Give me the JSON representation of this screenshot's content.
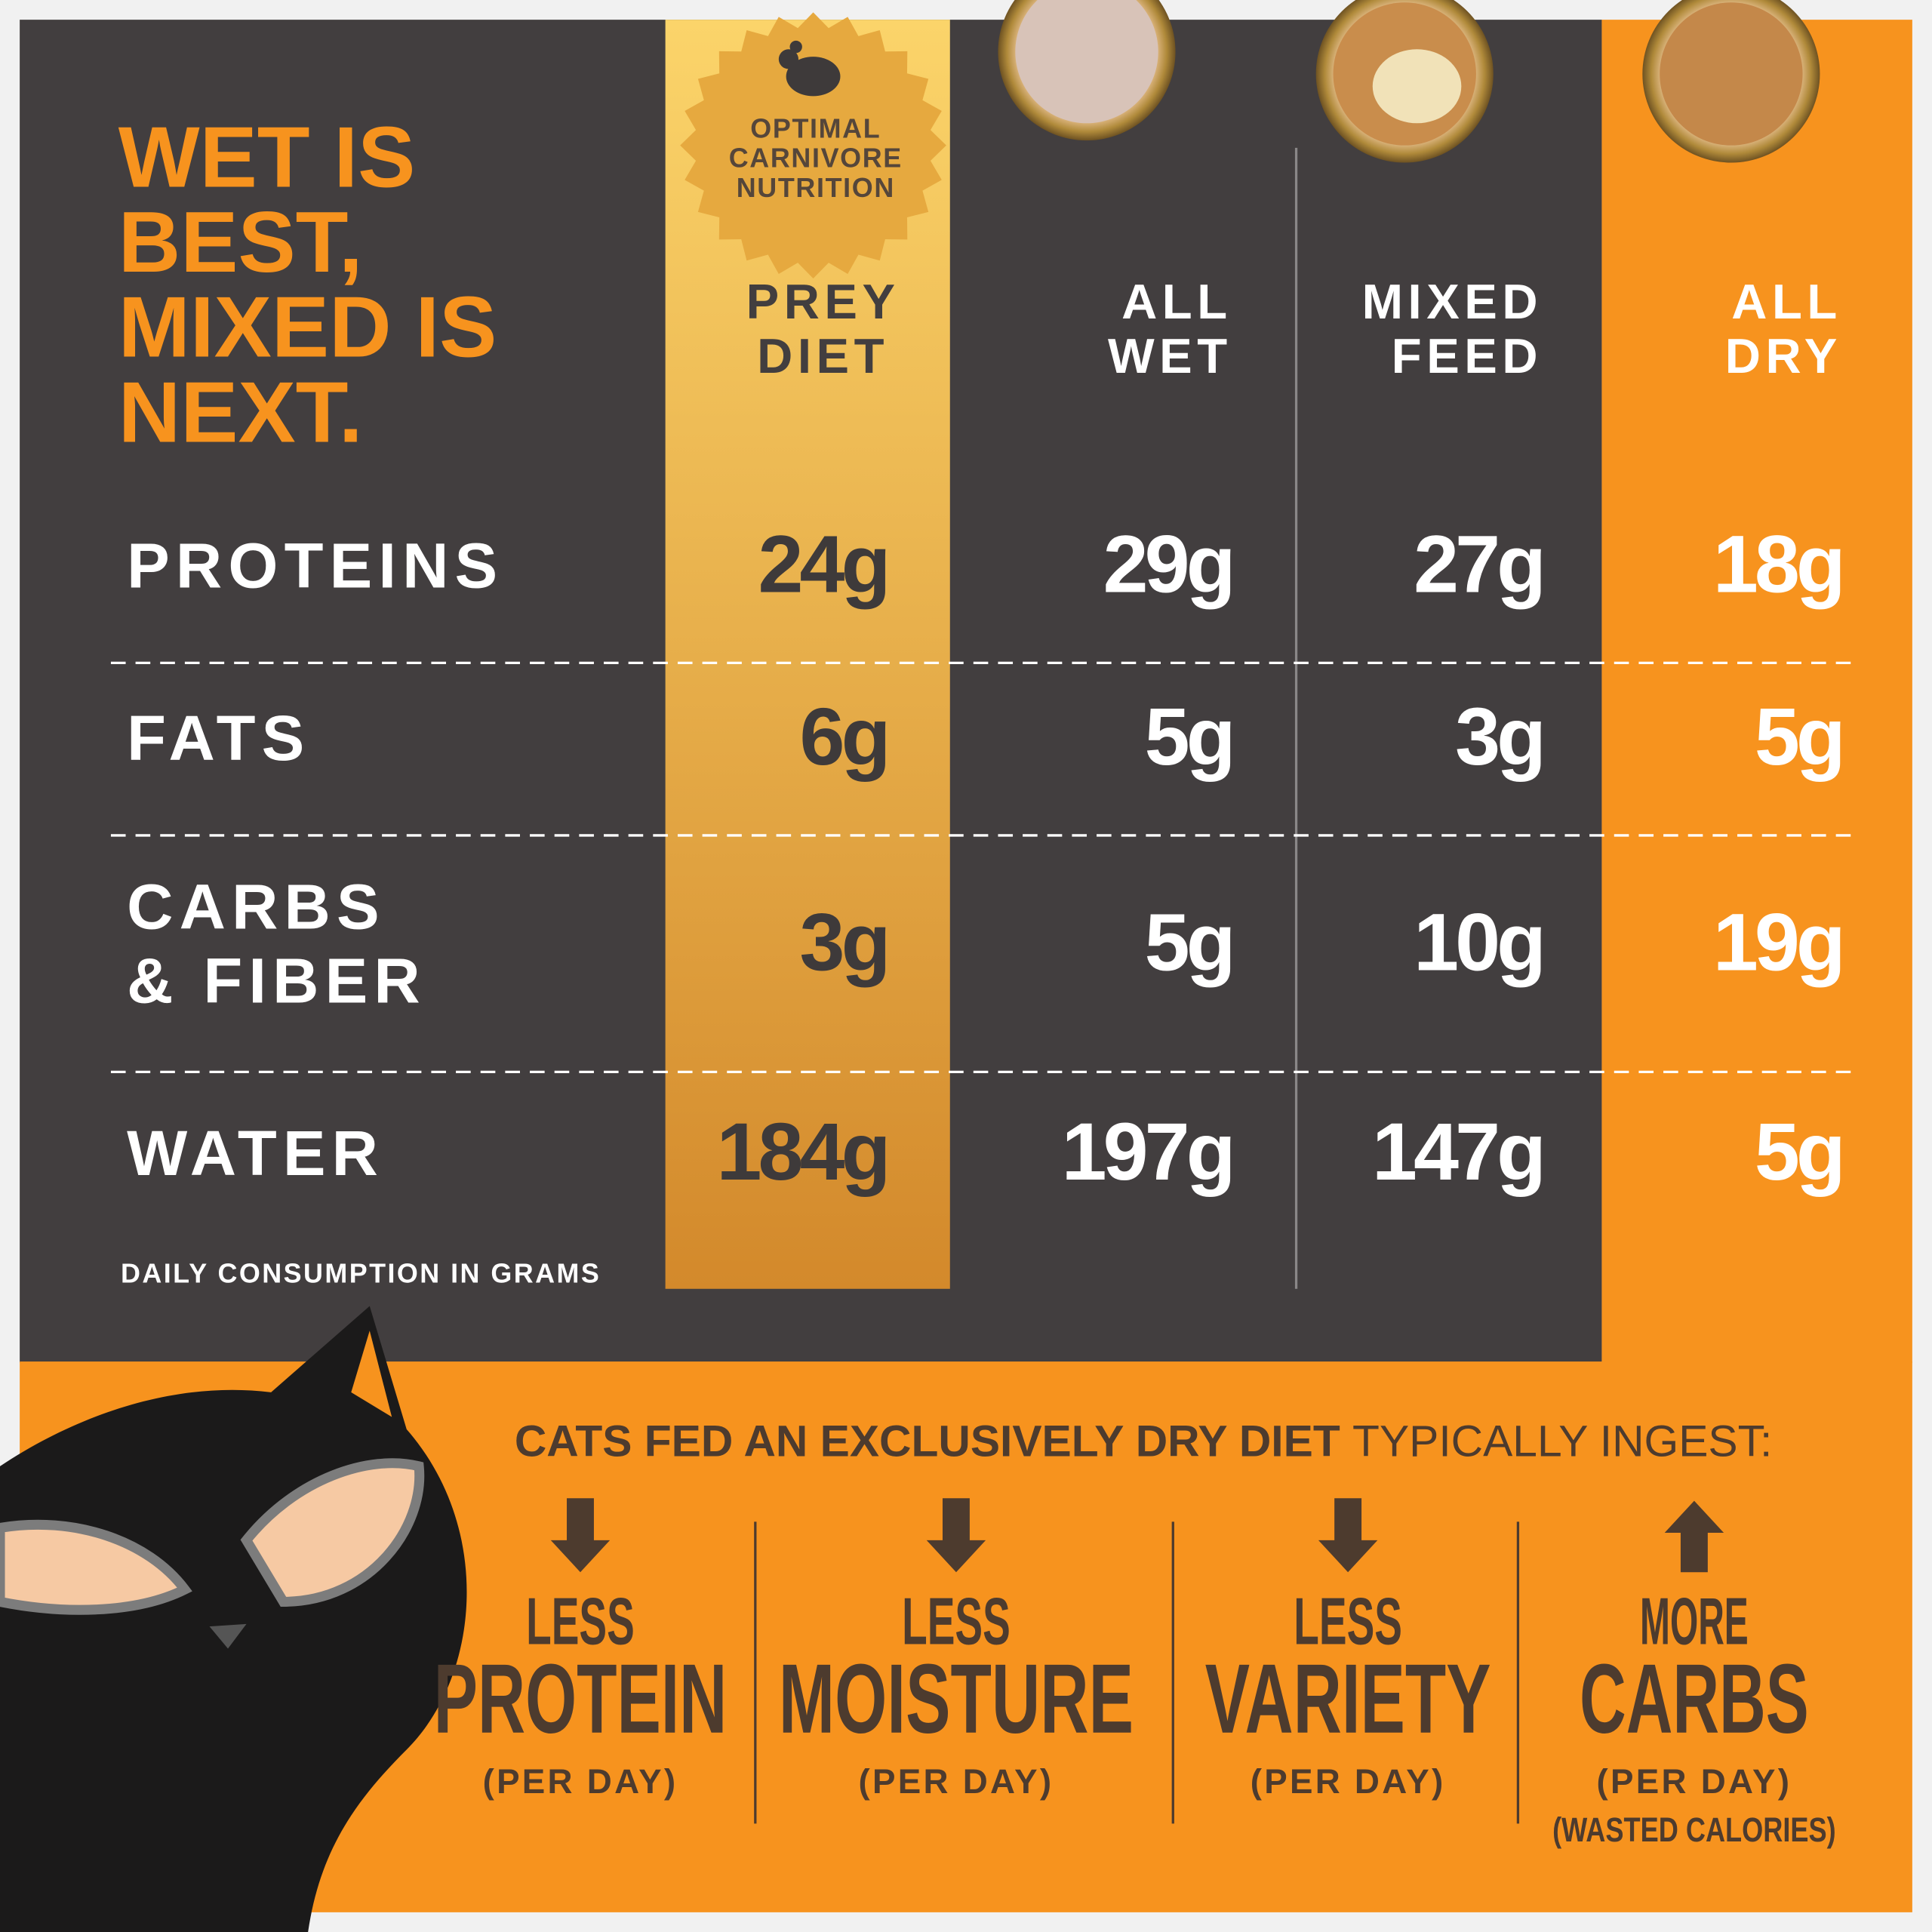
{
  "headline": [
    "WET IS",
    "BEST,",
    "MIXED IS",
    "NEXT."
  ],
  "badge": [
    "OPTIMAL",
    "CARNIVORE",
    "NUTRITION"
  ],
  "table": {
    "columns": [
      [
        "PREY",
        "DIET"
      ],
      [
        "ALL",
        "WET"
      ],
      [
        "MIXED",
        "FEED"
      ],
      [
        "ALL",
        "DRY"
      ]
    ],
    "rows": [
      {
        "label": [
          "PROTEINS"
        ],
        "cells": [
          "24g",
          "29g",
          "27g",
          "18g"
        ]
      },
      {
        "label": [
          "FATS"
        ],
        "cells": [
          "6g",
          "5g",
          "3g",
          "5g"
        ]
      },
      {
        "label": [
          "CARBS",
          "& FIBER"
        ],
        "cells": [
          "3g",
          "5g",
          "10g",
          "19g"
        ]
      },
      {
        "label": [
          "WATER"
        ],
        "cells": [
          "184g",
          "197g",
          "147g",
          "5g"
        ]
      }
    ],
    "note": "DAILY CONSUMPTION IN GRAMS"
  },
  "summary": {
    "lead_bold": "CATS FED AN EXCLUSIVELY DRY DIET",
    "lead_rest": "TYPICALLY INGEST:",
    "items": [
      {
        "direction": "down",
        "qualifier": "LESS",
        "subject": "PROTEIN",
        "unit": "(PER DAY)"
      },
      {
        "direction": "down",
        "qualifier": "LESS",
        "subject": "MOISTURE",
        "unit": "(PER DAY)"
      },
      {
        "direction": "down",
        "qualifier": "LESS",
        "subject": "VARIETY",
        "unit": "(PER DAY)"
      },
      {
        "direction": "up",
        "qualifier": "MORE",
        "subject": "CARBS",
        "unit": "(PER DAY)",
        "extra": "(WASTED CALORIES)"
      }
    ]
  }
}
